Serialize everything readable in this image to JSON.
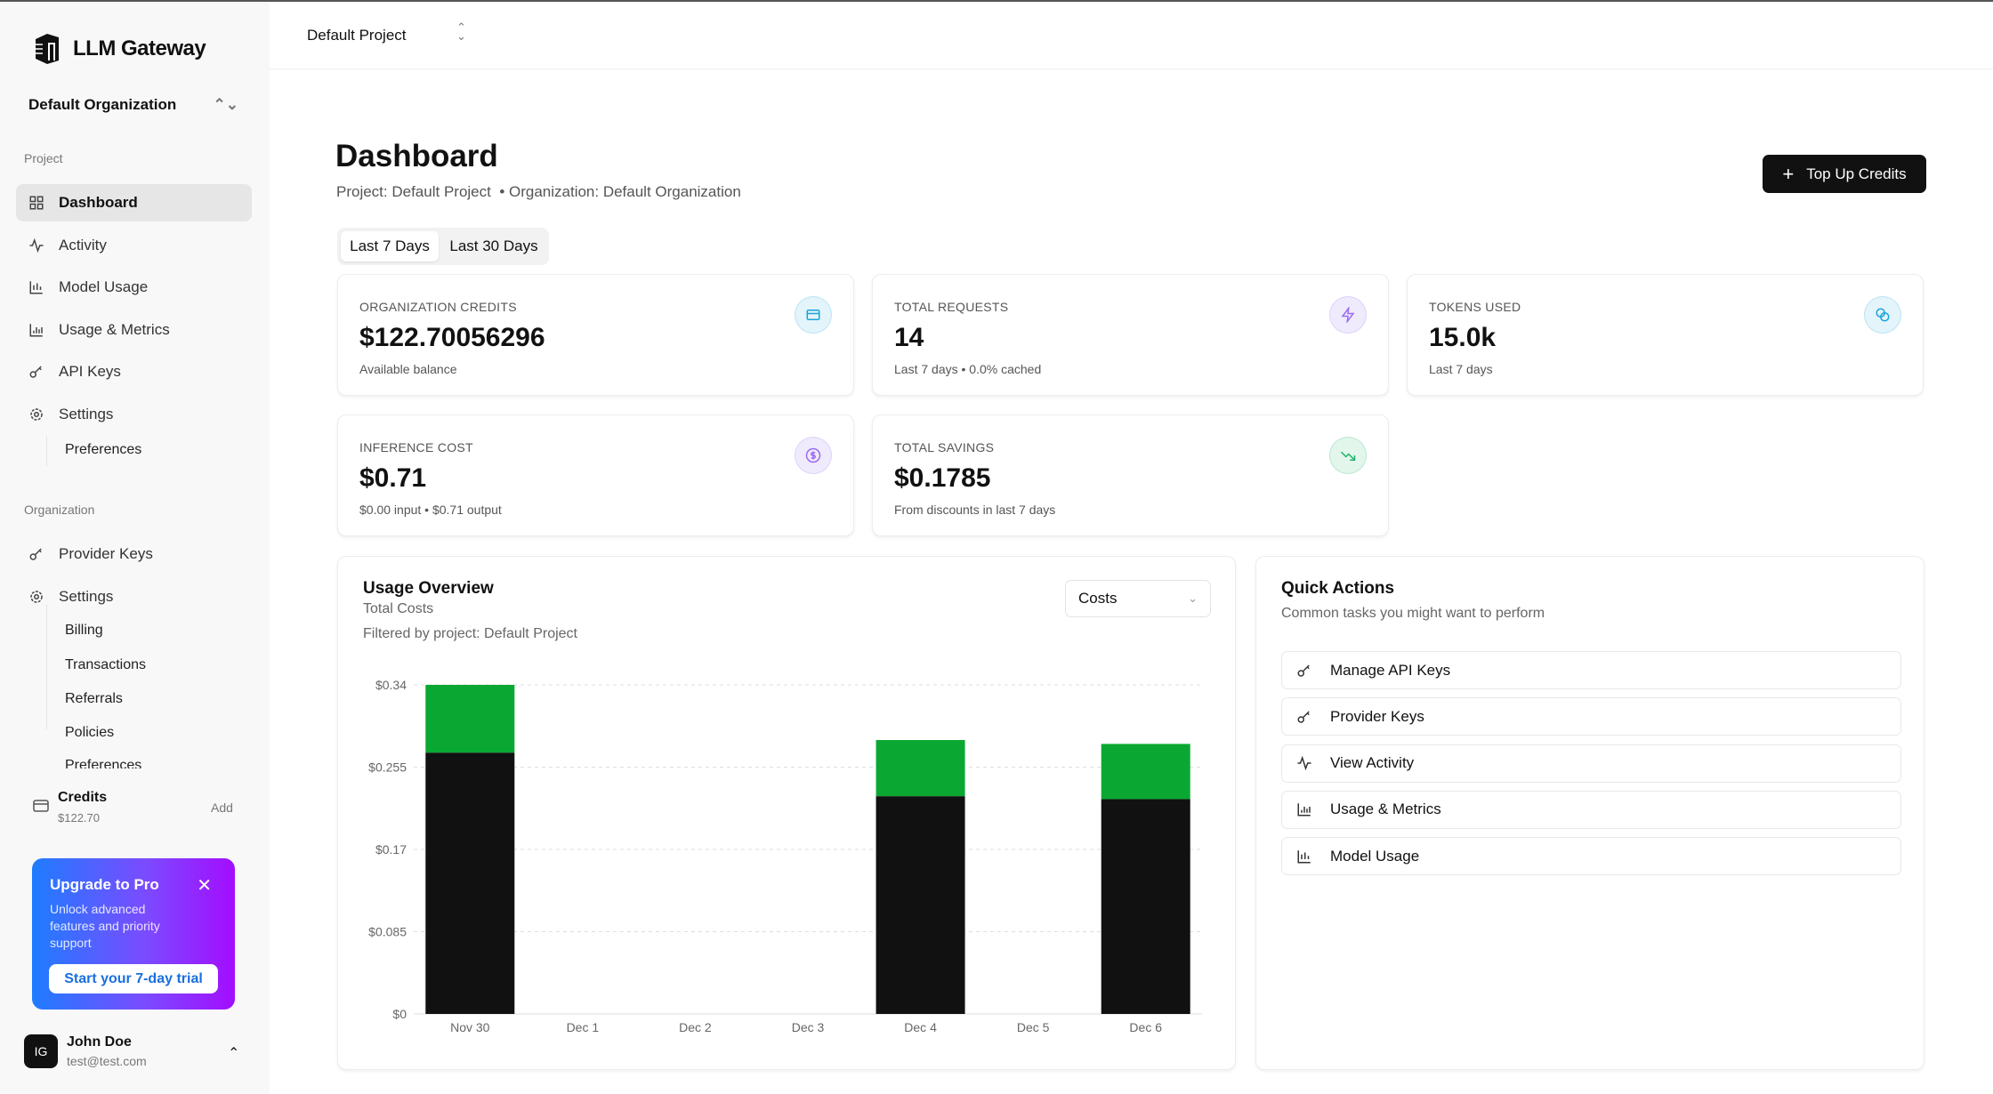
{
  "app": {
    "name": "LLM Gateway"
  },
  "sidebar": {
    "org_selector": "Default Organization",
    "project_section": "Project",
    "project_items": [
      {
        "label": "Dashboard",
        "icon": "grid-icon",
        "active": true
      },
      {
        "label": "Activity",
        "icon": "activity-icon"
      },
      {
        "label": "Model Usage",
        "icon": "bar-chart-icon"
      },
      {
        "label": "Usage & Metrics",
        "icon": "chart-icon"
      },
      {
        "label": "API Keys",
        "icon": "key-icon"
      },
      {
        "label": "Settings",
        "icon": "gear-icon"
      }
    ],
    "project_sub": [
      "Preferences"
    ],
    "org_section": "Organization",
    "org_items": [
      {
        "label": "Provider Keys",
        "icon": "key-icon"
      },
      {
        "label": "Settings",
        "icon": "gear-icon"
      }
    ],
    "org_sub": [
      "Billing",
      "Transactions",
      "Referrals",
      "Policies",
      "Preferences"
    ],
    "credits": {
      "label": "Credits",
      "value": "$122.70",
      "add": "Add"
    },
    "upgrade": {
      "title": "Upgrade to Pro",
      "text": "Unlock advanced features and priority support",
      "button": "Start your 7-day trial"
    },
    "user": {
      "initials": "IG",
      "name": "John Doe",
      "email": "test@test.com"
    }
  },
  "header": {
    "project_selector": "Default Project"
  },
  "main": {
    "title": "Dashboard",
    "subtitle_project": "Project: Default Project",
    "subtitle_org": "• Organization: Default Organization",
    "top_up": "Top Up Credits",
    "ranges": [
      "Last 7 Days",
      "Last 30 Days"
    ],
    "active_range": "Last 7 Days",
    "cards": [
      {
        "label": "ORGANIZATION CREDITS",
        "value": "$122.70056296",
        "sub": "Available balance",
        "icon": "credit-card-icon",
        "color": "#1aa3d9",
        "bg": "#e3f4fb"
      },
      {
        "label": "TOTAL REQUESTS",
        "value": "14",
        "sub": "Last 7 days • 0.0% cached",
        "icon": "zap-icon",
        "color": "#9b6cf0",
        "bg": "#f0eafd"
      },
      {
        "label": "TOKENS USED",
        "value": "15.0k",
        "sub": "Last 7 days",
        "icon": "coins-icon",
        "color": "#1aa3d9",
        "bg": "#e3f4fb"
      },
      {
        "label": "INFERENCE COST",
        "value": "$0.71",
        "sub": "$0.00 input • $0.71 output",
        "icon": "dollar-icon",
        "color": "#9b6cf0",
        "bg": "#f0eafd"
      },
      {
        "label": "TOTAL SAVINGS",
        "value": "$0.1785",
        "sub": "From discounts in last 7 days",
        "icon": "trending-down-icon",
        "color": "#1fb36a",
        "bg": "#e2f6ec"
      }
    ]
  },
  "usage": {
    "title": "Usage Overview",
    "subtitle": "Total Costs",
    "filter": "Filtered by project: Default Project",
    "select": "Costs"
  },
  "quick_actions": {
    "title": "Quick Actions",
    "subtitle": "Common tasks you might want to perform",
    "items": [
      {
        "label": "Manage API Keys",
        "icon": "key-icon"
      },
      {
        "label": "Provider Keys",
        "icon": "key-icon"
      },
      {
        "label": "View Activity",
        "icon": "activity-icon"
      },
      {
        "label": "Usage & Metrics",
        "icon": "chart-icon"
      },
      {
        "label": "Model Usage",
        "icon": "bar-chart-icon"
      }
    ]
  },
  "chart_data": {
    "type": "bar",
    "stacked": true,
    "categories": [
      "Nov 30",
      "Dec 1",
      "Dec 2",
      "Dec 3",
      "Dec 4",
      "Dec 5",
      "Dec 6"
    ],
    "series": [
      {
        "color": "#111111",
        "values": [
          0.27,
          0,
          0,
          0,
          0.225,
          0,
          0.222
        ]
      },
      {
        "color": "#0aa832",
        "values": [
          0.07,
          0,
          0,
          0,
          0.058,
          0,
          0.057
        ]
      }
    ],
    "yticks": [
      "$0",
      "$0.085",
      "$0.17",
      "$0.255",
      "$0.34"
    ],
    "ylim": [
      0,
      0.34
    ],
    "grid": true
  }
}
